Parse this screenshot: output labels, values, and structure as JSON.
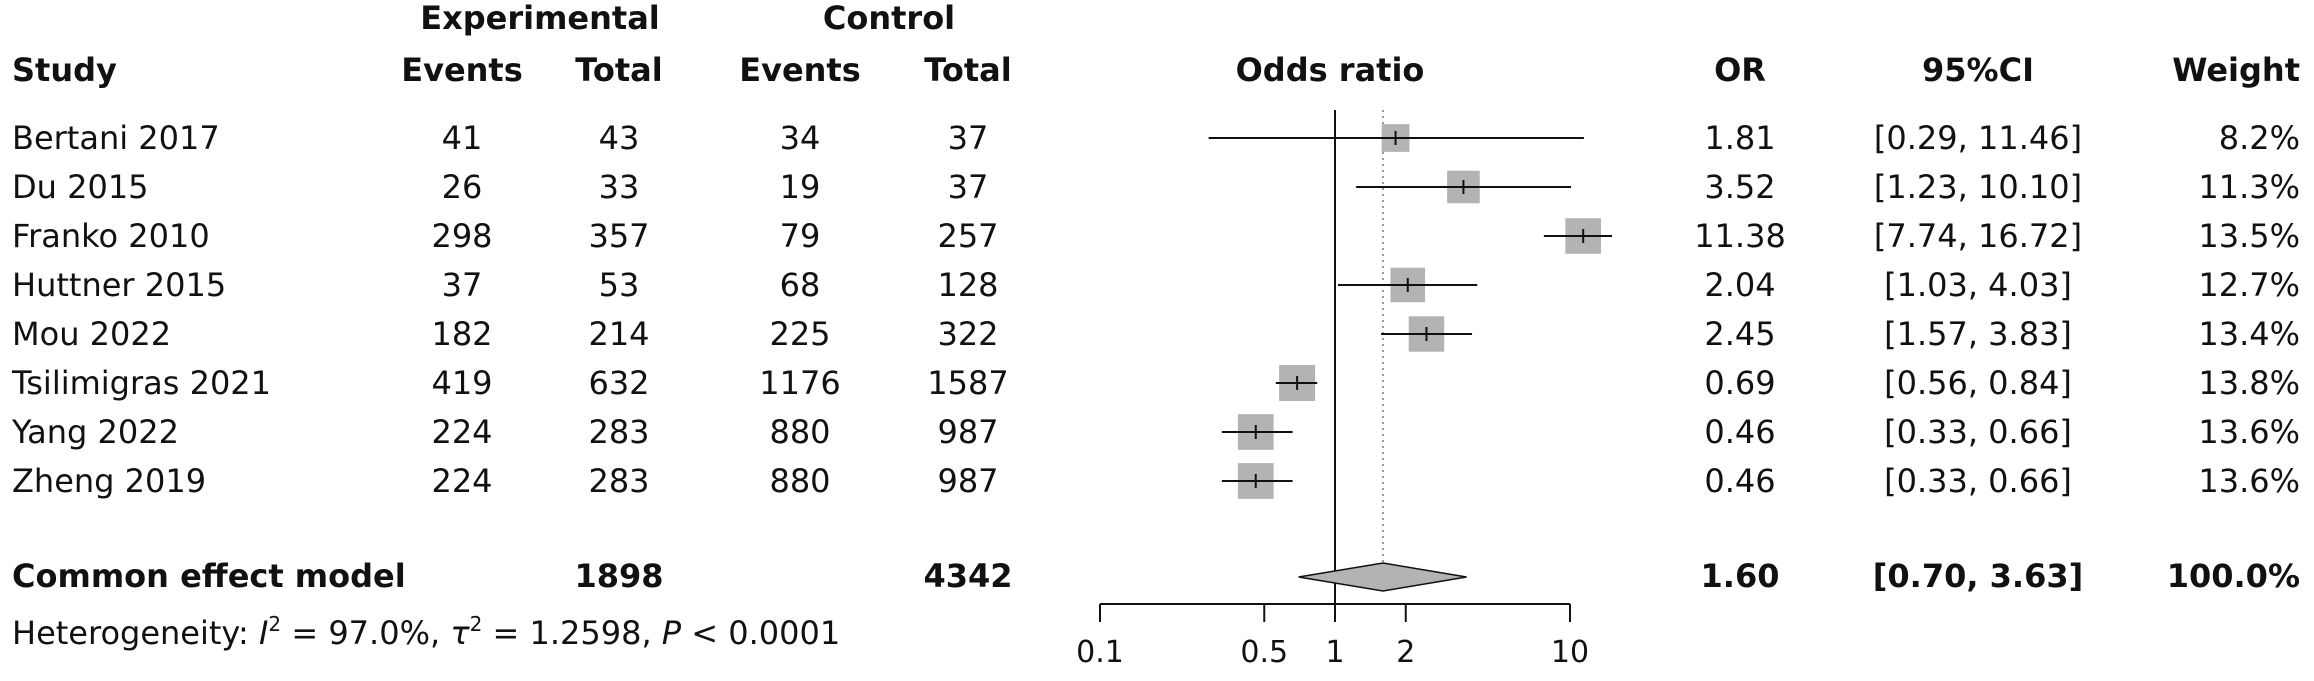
{
  "headers": {
    "experimental": "Experimental",
    "control": "Control",
    "study": "Study",
    "events": "Events",
    "total": "Total",
    "odds_ratio": "Odds ratio",
    "or": "OR",
    "ci": "95%CI",
    "weight": "Weight"
  },
  "summary": {
    "label": "Common effect model",
    "exp_total": "1898",
    "ctrl_total": "4342",
    "or": "1.60",
    "ci": "[0.70, 3.63]",
    "weight": "100.0%",
    "or_value": 1.6,
    "ci_low": 0.7,
    "ci_high": 3.63
  },
  "heterogeneity": {
    "prefix": "Heterogeneity: ",
    "i2_symbol": "I",
    "i2_value": " = 97.0%, ",
    "tau_symbol": "τ",
    "tau_value": " = 1.2598, ",
    "p_symbol": "P",
    "p_value": " < 0.0001",
    "sup": "2"
  },
  "colors": {
    "square": "#b3b3b3",
    "diamond": "#b3b3b3",
    "line": "#111111"
  },
  "chart_data": {
    "type": "forest",
    "x_scale": "log",
    "xlim": [
      0.1,
      10
    ],
    "x_ticks": [
      0.1,
      0.5,
      1,
      2,
      10
    ],
    "x_tick_labels": [
      "0.1",
      "0.5",
      "1",
      "2",
      "10"
    ],
    "reference_line": 1,
    "pooled_line": 1.6,
    "studies": [
      {
        "study": "Bertani 2017",
        "exp_events": "41",
        "exp_total": "43",
        "ctrl_events": "34",
        "ctrl_total": "37",
        "or": 1.81,
        "ci_low": 0.29,
        "ci_high": 11.46,
        "or_text": "1.81",
        "ci_text": "[0.29, 11.46]",
        "weight": "8.2%",
        "weight_value": 8.2
      },
      {
        "study": "Du 2015",
        "exp_events": "26",
        "exp_total": "33",
        "ctrl_events": "19",
        "ctrl_total": "37",
        "or": 3.52,
        "ci_low": 1.23,
        "ci_high": 10.1,
        "or_text": "3.52",
        "ci_text": "[1.23, 10.10]",
        "weight": "11.3%",
        "weight_value": 11.3
      },
      {
        "study": "Franko 2010",
        "exp_events": "298",
        "exp_total": "357",
        "ctrl_events": "79",
        "ctrl_total": "257",
        "or": 11.38,
        "ci_low": 7.74,
        "ci_high": 16.72,
        "or_text": "11.38",
        "ci_text": "[7.74, 16.72]",
        "weight": "13.5%",
        "weight_value": 13.5
      },
      {
        "study": "Huttner 2015",
        "exp_events": "37",
        "exp_total": "53",
        "ctrl_events": "68",
        "ctrl_total": "128",
        "or": 2.04,
        "ci_low": 1.03,
        "ci_high": 4.03,
        "or_text": "2.04",
        "ci_text": "[1.03, 4.03]",
        "weight": "12.7%",
        "weight_value": 12.7
      },
      {
        "study": "Mou 2022",
        "exp_events": "182",
        "exp_total": "214",
        "ctrl_events": "225",
        "ctrl_total": "322",
        "or": 2.45,
        "ci_low": 1.57,
        "ci_high": 3.83,
        "or_text": "2.45",
        "ci_text": "[1.57, 3.83]",
        "weight": "13.4%",
        "weight_value": 13.4
      },
      {
        "study": "Tsilimigras 2021",
        "exp_events": "419",
        "exp_total": "632",
        "ctrl_events": "1176",
        "ctrl_total": "1587",
        "or": 0.69,
        "ci_low": 0.56,
        "ci_high": 0.84,
        "or_text": "0.69",
        "ci_text": "[0.56, 0.84]",
        "weight": "13.8%",
        "weight_value": 13.8
      },
      {
        "study": "Yang 2022",
        "exp_events": "224",
        "exp_total": "283",
        "ctrl_events": "880",
        "ctrl_total": "987",
        "or": 0.46,
        "ci_low": 0.33,
        "ci_high": 0.66,
        "or_text": "0.46",
        "ci_text": "[0.33, 0.66]",
        "weight": "13.6%",
        "weight_value": 13.6
      },
      {
        "study": "Zheng 2019",
        "exp_events": "224",
        "exp_total": "283",
        "ctrl_events": "880",
        "ctrl_total": "987",
        "or": 0.46,
        "ci_low": 0.33,
        "ci_high": 0.66,
        "or_text": "0.46",
        "ci_text": "[0.33, 0.66]",
        "weight": "13.6%",
        "weight_value": 13.6
      }
    ]
  }
}
